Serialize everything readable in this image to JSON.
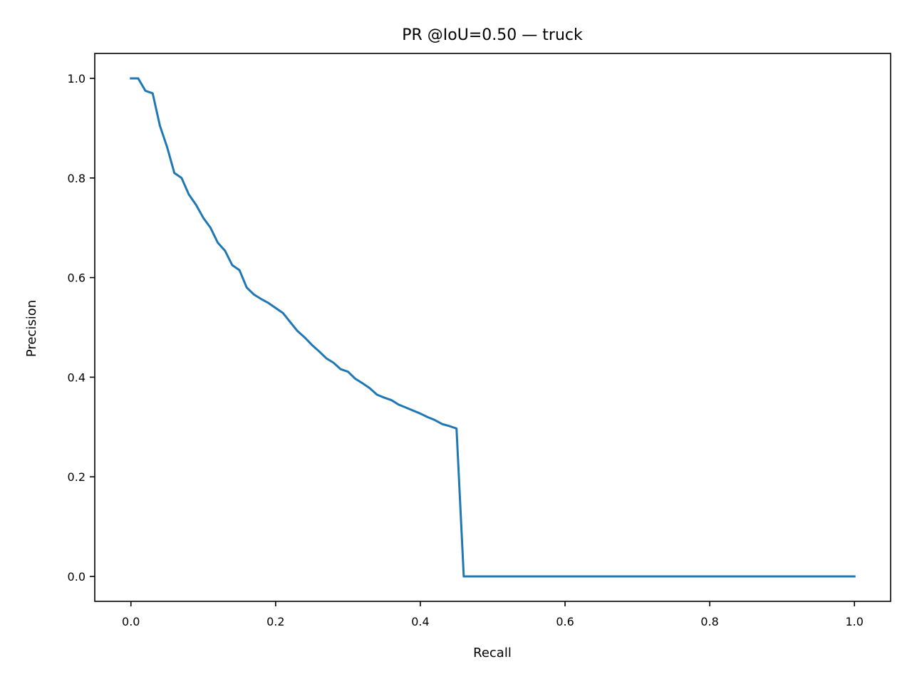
{
  "chart_data": {
    "type": "line",
    "title": "PR @IoU=0.50 — truck",
    "xlabel": "Recall",
    "ylabel": "Precision",
    "xlim": [
      -0.05,
      1.05
    ],
    "ylim": [
      -0.05,
      1.05
    ],
    "grid": false,
    "xticks": [
      "0.0",
      "0.2",
      "0.4",
      "0.6",
      "0.8",
      "1.0"
    ],
    "yticks": [
      "0.0",
      "0.2",
      "0.4",
      "0.6",
      "0.8",
      "1.0"
    ],
    "colors": {
      "line": "#1f77b4",
      "axes": "#000000",
      "background": "#ffffff"
    },
    "series": [
      {
        "x": [
          0.0,
          0.01,
          0.02,
          0.03,
          0.04,
          0.05,
          0.06,
          0.07,
          0.08,
          0.09,
          0.1,
          0.11,
          0.12,
          0.13,
          0.14,
          0.15,
          0.16,
          0.17,
          0.18,
          0.19,
          0.2,
          0.21,
          0.22,
          0.23,
          0.24,
          0.25,
          0.26,
          0.27,
          0.28,
          0.29,
          0.3,
          0.31,
          0.32,
          0.33,
          0.34,
          0.35,
          0.36,
          0.37,
          0.38,
          0.39,
          0.4,
          0.41,
          0.42,
          0.43,
          0.44,
          0.45,
          0.46,
          0.47,
          0.5,
          0.6,
          0.7,
          0.8,
          0.9,
          1.0
        ],
        "values": [
          1.0,
          1.0,
          0.975,
          0.97,
          0.905,
          0.862,
          0.81,
          0.8,
          0.767,
          0.746,
          0.72,
          0.7,
          0.67,
          0.654,
          0.625,
          0.615,
          0.58,
          0.566,
          0.557,
          0.549,
          0.539,
          0.529,
          0.511,
          0.493,
          0.48,
          0.465,
          0.452,
          0.438,
          0.429,
          0.416,
          0.411,
          0.397,
          0.388,
          0.378,
          0.365,
          0.359,
          0.354,
          0.345,
          0.339,
          0.333,
          0.327,
          0.32,
          0.314,
          0.306,
          0.302,
          0.297,
          0.0,
          0.0,
          0.0,
          0.0,
          0.0,
          0.0,
          0.0,
          0.0
        ]
      }
    ]
  }
}
